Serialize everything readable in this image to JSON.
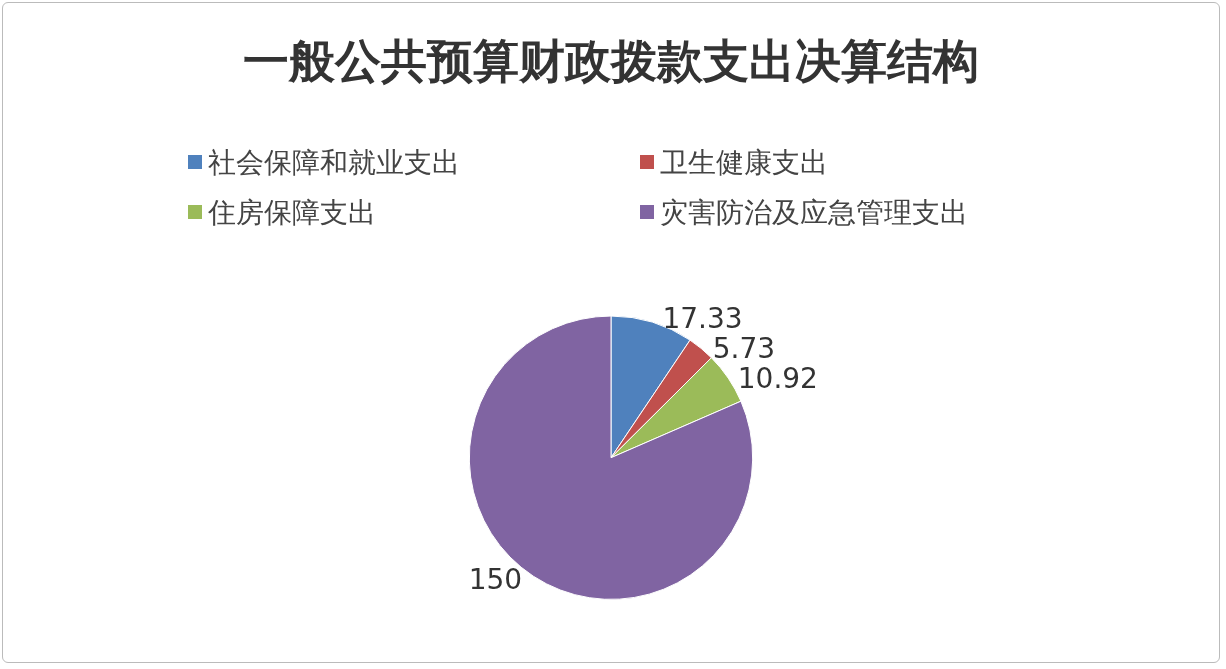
{
  "chart_data": {
    "type": "pie",
    "title": "一般公共预算财政拨款支出决算结构",
    "categories": [
      "社会保障和就业支出",
      "卫生健康支出",
      "住房保障支出",
      "灾害防治及应急管理支出"
    ],
    "values": [
      17.33,
      5.73,
      10.92,
      150
    ],
    "colors": [
      "#4f81bd",
      "#c0504d",
      "#9bbb59",
      "#8064a2"
    ],
    "data_labels": true,
    "legend": "top"
  }
}
